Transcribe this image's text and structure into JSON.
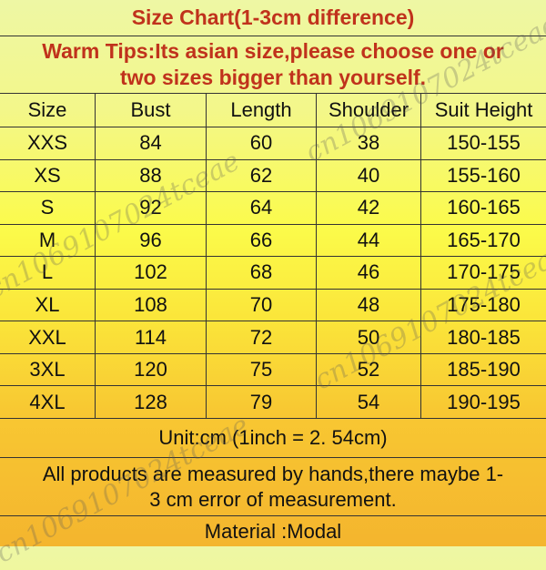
{
  "title": "Size Chart(1-3cm difference)",
  "tips_line1": "Warm Tips:Its asian size,please choose one or",
  "tips_line2": "two sizes bigger than yourself.",
  "headers": [
    "Size",
    "Bust",
    "Length",
    "Shoulder",
    "Suit Height"
  ],
  "rows": [
    [
      "XXS",
      "84",
      "60",
      "38",
      "150-155"
    ],
    [
      "XS",
      "88",
      "62",
      "40",
      "155-160"
    ],
    [
      "S",
      "92",
      "64",
      "42",
      "160-165"
    ],
    [
      "M",
      "96",
      "66",
      "44",
      "165-170"
    ],
    [
      "L",
      "102",
      "68",
      "46",
      "170-175"
    ],
    [
      "XL",
      "108",
      "70",
      "48",
      "175-180"
    ],
    [
      "XXL",
      "114",
      "72",
      "50",
      "180-185"
    ],
    [
      "3XL",
      "120",
      "75",
      "52",
      "185-190"
    ],
    [
      "4XL",
      "128",
      "79",
      "54",
      "190-195"
    ]
  ],
  "unit": "Unit:cm (1inch = 2. 54cm)",
  "note_line1": "All products are measured by hands,there maybe 1-",
  "note_line2": "3 cm error of measurement.",
  "material": "Material :Modal",
  "watermark": "cn1069107024tceae",
  "colors": {
    "title_red": "#c0321c",
    "top": "#eef7a4",
    "middle": "#fbfb4a",
    "bottom": "#f4b52e"
  }
}
